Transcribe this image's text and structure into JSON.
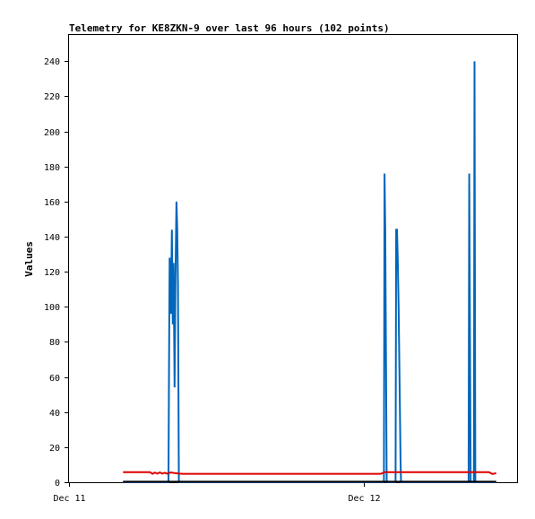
{
  "chart_data": {
    "type": "line",
    "title": "Telemetry for KE8ZKN-9 over last 96 hours (102 points)",
    "ylabel": "Values",
    "xlabel": "",
    "x_axis": {
      "type": "date",
      "tick_labels": [
        "Dec 11",
        "Dec 12"
      ],
      "tick_hours": [
        0,
        24
      ],
      "range_hours": [
        0,
        36.5
      ]
    },
    "ylim": [
      0,
      255
    ],
    "y_ticks": [
      0,
      20,
      40,
      60,
      80,
      100,
      120,
      140,
      160,
      180,
      200,
      220,
      240
    ],
    "grid": false,
    "legend": "none",
    "series": [
      {
        "color": "#0066bb",
        "points": [
          [
            4.4,
            0
          ],
          [
            8.1,
            0
          ],
          [
            8.15,
            64
          ],
          [
            8.2,
            128
          ],
          [
            8.3,
            96
          ],
          [
            8.38,
            144
          ],
          [
            8.45,
            90
          ],
          [
            8.52,
            125
          ],
          [
            8.6,
            54
          ],
          [
            8.68,
            120
          ],
          [
            8.75,
            160
          ],
          [
            8.82,
            144
          ],
          [
            8.88,
            112
          ],
          [
            8.95,
            0
          ],
          [
            25.65,
            0
          ],
          [
            25.7,
            176
          ],
          [
            25.76,
            144
          ],
          [
            25.82,
            72
          ],
          [
            25.88,
            0
          ],
          [
            26.6,
            0
          ],
          [
            26.65,
            144
          ],
          [
            26.72,
            144
          ],
          [
            26.78,
            128
          ],
          [
            26.85,
            100
          ],
          [
            26.9,
            72
          ],
          [
            26.95,
            44
          ],
          [
            27.0,
            14
          ],
          [
            27.05,
            0
          ],
          [
            32.55,
            0
          ],
          [
            32.6,
            176
          ],
          [
            32.66,
            88
          ],
          [
            32.72,
            0
          ],
          [
            32.98,
            0
          ],
          [
            33.03,
            240
          ],
          [
            33.1,
            0
          ],
          [
            34.8,
            0
          ]
        ]
      },
      {
        "color": "#dd0000",
        "points": [
          [
            4.4,
            5.7
          ],
          [
            6.6,
            5.7
          ],
          [
            6.8,
            4.8
          ],
          [
            7.0,
            5.5
          ],
          [
            7.2,
            4.9
          ],
          [
            7.4,
            5.6
          ],
          [
            7.6,
            4.9
          ],
          [
            7.8,
            5.4
          ],
          [
            8.0,
            4.9
          ],
          [
            8.3,
            5.6
          ],
          [
            8.6,
            5.2
          ],
          [
            9.0,
            4.9
          ],
          [
            9.3,
            4.8
          ],
          [
            25.4,
            4.8
          ],
          [
            25.7,
            5.8
          ],
          [
            32.6,
            5.8
          ],
          [
            34.2,
            5.8
          ],
          [
            34.5,
            4.7
          ],
          [
            34.8,
            5.2
          ]
        ]
      },
      {
        "color": "#000000",
        "points": [
          [
            4.4,
            0.3
          ],
          [
            34.8,
            0.3
          ]
        ]
      }
    ]
  }
}
